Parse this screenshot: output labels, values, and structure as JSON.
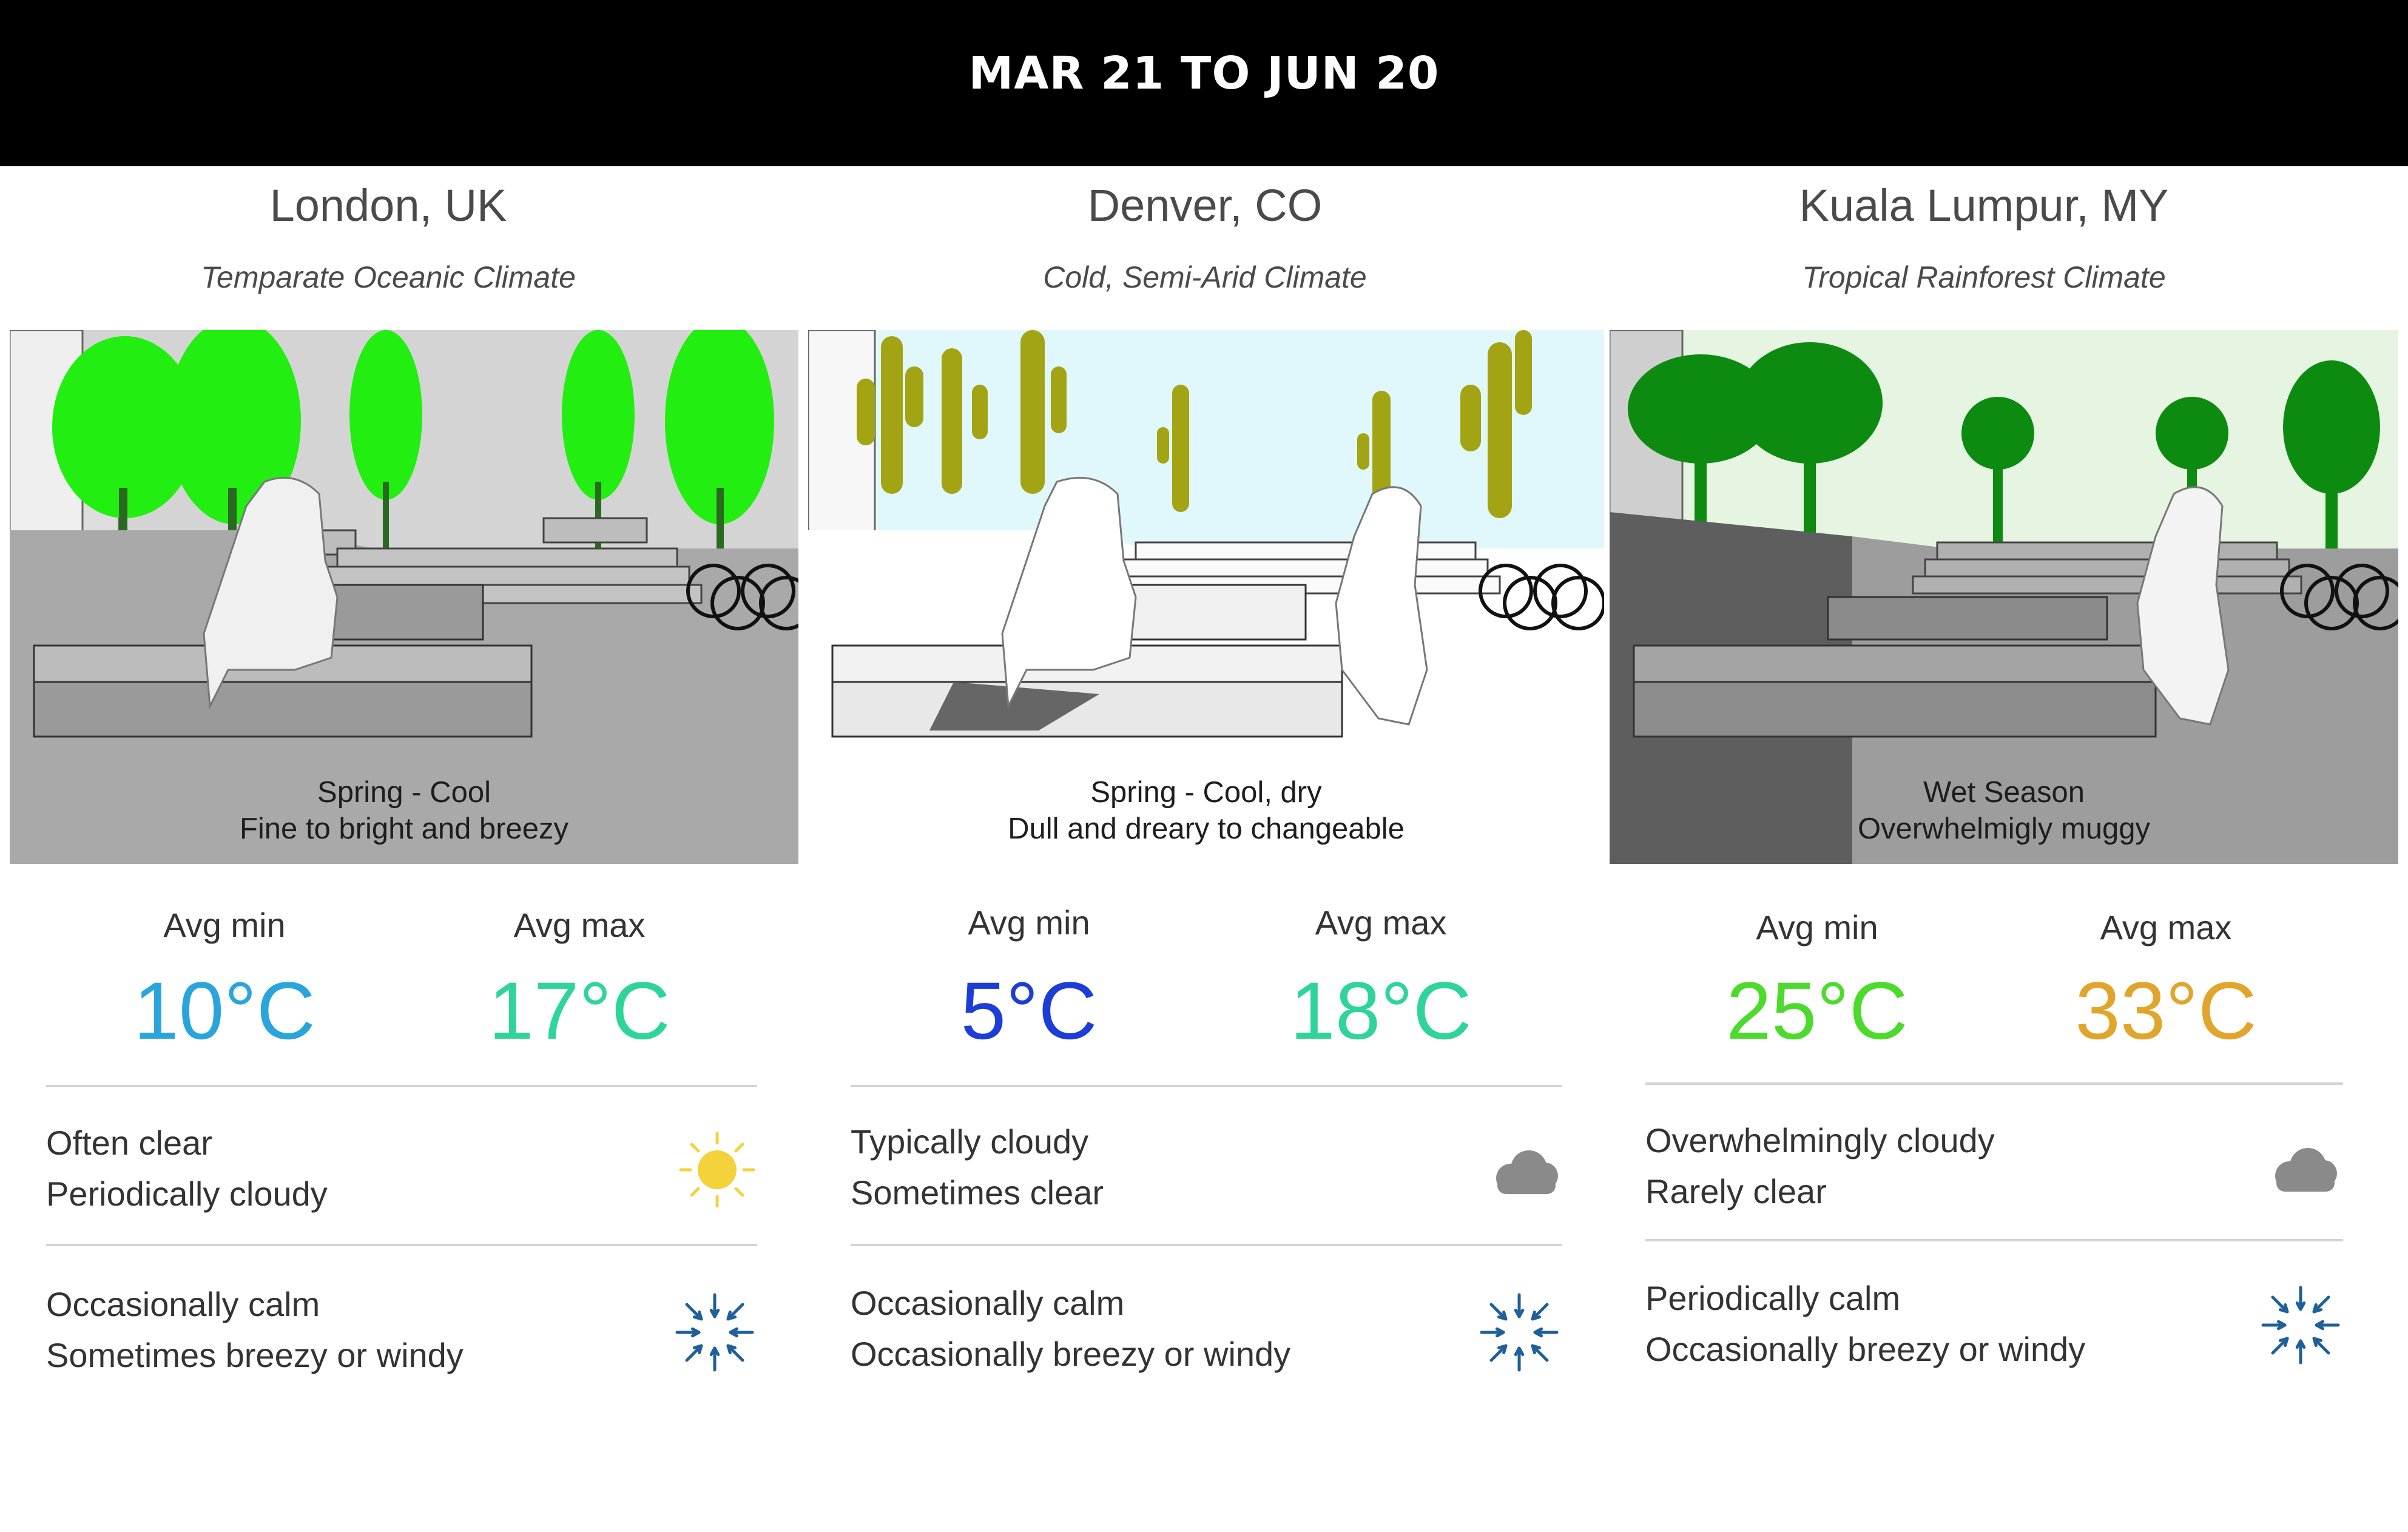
{
  "header": {
    "title": "MAR 21 TO JUN 20"
  },
  "columns": [
    {
      "city": "London, UK",
      "climate": "Temparate Oceanic Climate",
      "season_line1": "Spring - Cool",
      "season_line2": "Fine to bright and breezy",
      "avg_min_label": "Avg min",
      "avg_min": "10°C",
      "avg_max_label": "Avg max",
      "avg_max": "17°C",
      "sky_line1": "Often clear",
      "sky_line2": "Periodically cloudy",
      "sky_icon": "sun-icon",
      "wind_line1": "Occasionally calm",
      "wind_line2": "Sometimes breezy or windy",
      "wind_icon": "calm-wind-icon",
      "min_color": "#2aa5dc",
      "max_color": "#2fd49a",
      "tree_color": "#22ee12",
      "sky_color": "#d4d4d4"
    },
    {
      "city": "Denver, CO",
      "climate": "Cold, Semi-Arid Climate",
      "season_line1": "Spring - Cool, dry",
      "season_line2": "Dull and dreary to changeable",
      "avg_min_label": "Avg min",
      "avg_min": "5°C",
      "avg_max_label": "Avg max",
      "avg_max": "18°C",
      "sky_line1": "Typically cloudy",
      "sky_line2": "Sometimes clear",
      "sky_icon": "cloud-icon",
      "wind_line1": "Occasionally calm",
      "wind_line2": "Occasionally breezy or windy",
      "wind_icon": "calm-wind-icon",
      "min_color": "#1d3ed6",
      "max_color": "#2fd49a",
      "tree_color": "#a3a414",
      "sky_color": "#e0f8fb"
    },
    {
      "city": "Kuala Lumpur, MY",
      "climate": "Tropical Rainforest Climate",
      "season_line1": "Wet Season",
      "season_line2": "Overwhelmigly muggy",
      "avg_min_label": "Avg min",
      "avg_min": "25°C",
      "avg_max_label": "Avg max",
      "avg_max": "33°C",
      "sky_line1": "Overwhelmingly cloudy",
      "sky_line2": "Rarely clear",
      "sky_icon": "cloud-icon",
      "wind_line1": "Periodically calm",
      "wind_line2": "Occasionally breezy or windy",
      "wind_icon": "calm-wind-icon",
      "min_color": "#4cdb2c",
      "max_color": "#e0a52a",
      "tree_color": "#0d8a10",
      "sky_color": "#e6f5e2"
    }
  ]
}
